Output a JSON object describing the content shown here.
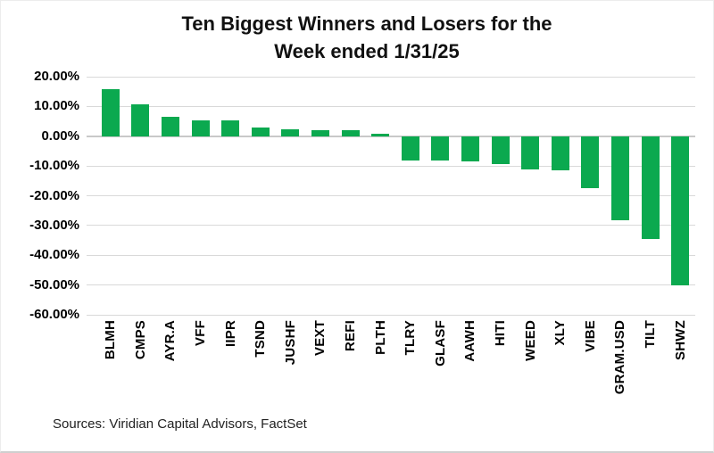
{
  "page": {
    "title_line1": "Ten Biggest Winners and Losers for the",
    "title_line2": "Week ended 1/31/25",
    "source_note": "Sources: Viridian Capital Advisors, FactSet"
  },
  "chart_data": {
    "type": "bar",
    "title": "Ten Biggest Winners and Losers for the Week ended 1/31/25",
    "categories": [
      "BLMH",
      "CMPS",
      "AYR.A",
      "VFF",
      "IIPR",
      "TSND",
      "JUSHF",
      "VEXT",
      "REFI",
      "PLTH",
      "TLRY",
      "GLASF",
      "AAWH",
      "HITI",
      "WEED",
      "XLY",
      "VIBE",
      "GRAM.USD",
      "TILT",
      "SHWZ"
    ],
    "values": [
      15.7,
      10.6,
      6.4,
      5.3,
      5.4,
      2.9,
      2.2,
      2.0,
      2.1,
      0.8,
      -8.1,
      -8.2,
      -8.4,
      -9.3,
      -11.1,
      -11.4,
      -17.6,
      -28.2,
      -34.4,
      -50.2
    ],
    "value_unit": "%",
    "xlabel": "",
    "ylabel": "",
    "ylim": [
      -60,
      20
    ],
    "y_tick_values": [
      20,
      10,
      0,
      -10,
      -20,
      -30,
      -40,
      -50,
      -60
    ],
    "y_tick_labels": [
      "20.00%",
      "10.00%",
      "0.00%",
      "-10.00%",
      "-20.00%",
      "-30.00%",
      "-40.00%",
      "-50.00%",
      "-60.00%"
    ],
    "grid": true,
    "legend": false,
    "bar_color": "#0BA94F",
    "gridline_color": "#D9D9D9",
    "text_color": "#000000"
  }
}
